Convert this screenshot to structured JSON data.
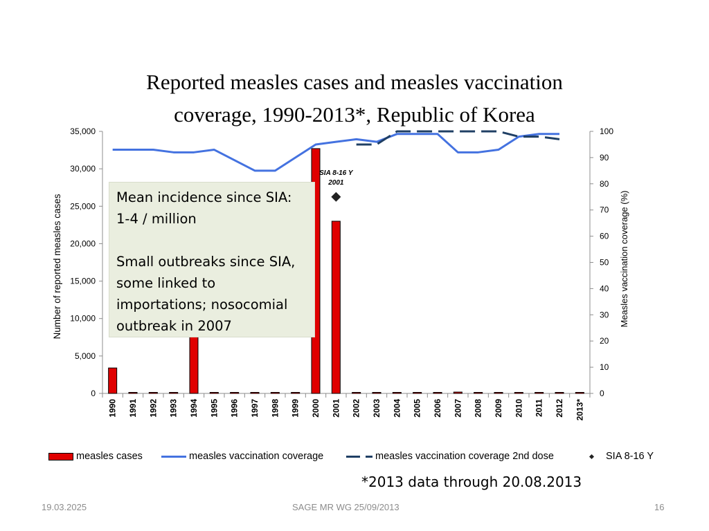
{
  "slide": {
    "title_line1": "Reported measles cases and measles vaccination",
    "title_line2": "coverage, 1990-2013*, Republic of Korea",
    "footnote": "*2013 data through 20.08.2013",
    "footer_date": "19.03.2025",
    "footer_center": "SAGE MR WG 25/09/2013",
    "page_number": "16"
  },
  "annotation": {
    "line1": "Mean incidence since SIA:",
    "line2": "1-4 / million",
    "line3": "Small outbreaks since SIA,",
    "line4": "some linked to",
    "line5": "importations; nosocomial",
    "line6": "outbreak in 2007"
  },
  "legend": {
    "cases": "measles cases",
    "coverage": "measles vaccination coverage",
    "coverage2": "measles vaccination coverage 2nd dose",
    "sia": "SIA 8-16 Y"
  },
  "colors": {
    "bar": "#e00000",
    "coverage": "#4472e0",
    "coverage2": "#1f3f64",
    "sia": "#222222"
  },
  "chart_data": {
    "type": "bar",
    "categories": [
      "1990",
      "1991",
      "1992",
      "1993",
      "1994",
      "1995",
      "1996",
      "1997",
      "1998",
      "1999",
      "2000",
      "2001",
      "2002",
      "2003",
      "2004",
      "2005",
      "2006",
      "2007",
      "2008",
      "2009",
      "2010",
      "2011",
      "2012",
      "2013*"
    ],
    "ylabel": "Number of reported measles cases",
    "ylabel_right": "Measles vaccination coverage (%)",
    "ylim": [
      0,
      35000
    ],
    "ylim_right": [
      0,
      100
    ],
    "yticks": [
      "0",
      "5,000",
      "10,000",
      "15,000",
      "20,000",
      "25,000",
      "30,000",
      "35,000"
    ],
    "yticks_right": [
      "0",
      "10",
      "20",
      "30",
      "40",
      "50",
      "60",
      "70",
      "80",
      "90",
      "100"
    ],
    "series": [
      {
        "name": "measles cases",
        "axis": "left",
        "kind": "bar",
        "values": [
          3400,
          0,
          0,
          0,
          7800,
          70,
          80,
          20,
          20,
          0,
          32700,
          23000,
          60,
          20,
          10,
          10,
          40,
          180,
          20,
          15,
          110,
          40,
          5,
          70
        ]
      },
      {
        "name": "measles vaccination coverage",
        "axis": "right",
        "kind": "line",
        "values": [
          93,
          93,
          93,
          92,
          92,
          93,
          89,
          85,
          85,
          90,
          95,
          96,
          97,
          96,
          99,
          99,
          99,
          92,
          92,
          93,
          98,
          99,
          99,
          null
        ]
      },
      {
        "name": "measles vaccination coverage 2nd dose",
        "axis": "right",
        "kind": "dashed-line",
        "values": [
          null,
          null,
          null,
          null,
          null,
          null,
          null,
          null,
          null,
          null,
          null,
          null,
          95,
          95,
          100,
          100,
          100,
          100,
          100,
          100,
          98,
          98,
          97,
          null
        ]
      },
      {
        "name": "SIA 8-16 Y",
        "axis": "right",
        "kind": "marker",
        "year": "2001",
        "value": 75
      }
    ],
    "annotations": [
      {
        "text_line1": "SIA 8-16 Y",
        "text_line2": "2001",
        "year": "2001"
      }
    ]
  }
}
